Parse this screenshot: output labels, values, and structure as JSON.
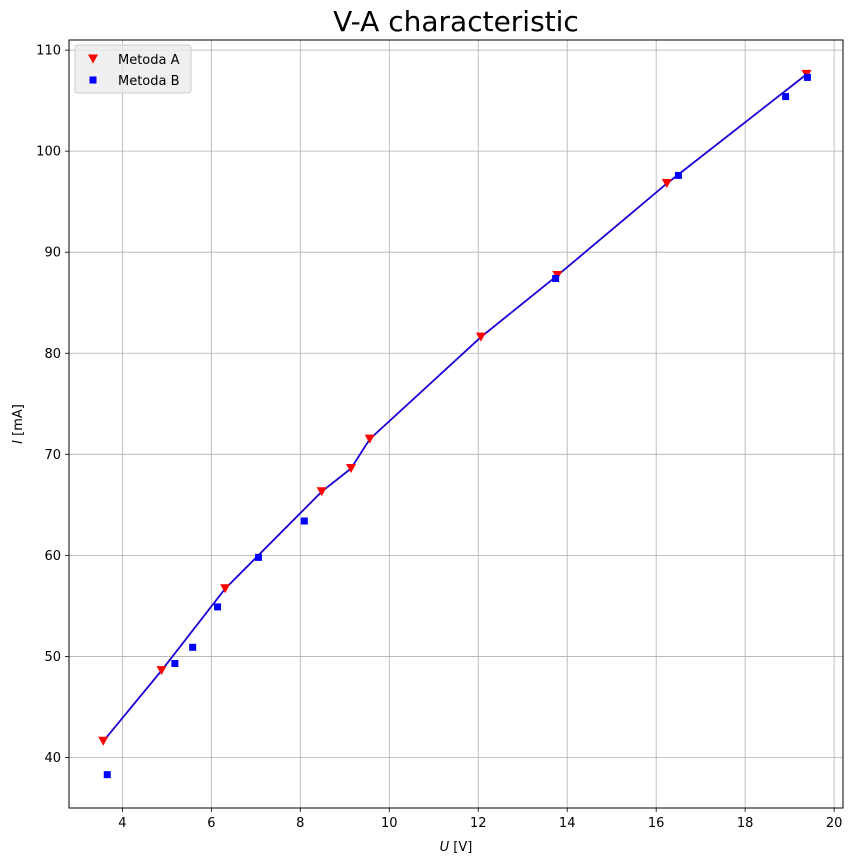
{
  "chart_data": {
    "type": "scatter",
    "title": "V-A characteristic",
    "xlabel_var": "U",
    "xlabel_unit": " [V]",
    "ylabel_var": "I",
    "ylabel_unit": " [mA]",
    "xlim": [
      2.8,
      20.2
    ],
    "ylim": [
      35,
      111
    ],
    "xticks": [
      4,
      6,
      8,
      10,
      12,
      14,
      16,
      18,
      20
    ],
    "yticks": [
      40,
      50,
      60,
      70,
      80,
      90,
      100,
      110
    ],
    "grid": true,
    "legend_position": "upper-left",
    "colors": {
      "metoda_a": "#ff0000",
      "metoda_b": "#0000ff",
      "line": "#1a00d6"
    },
    "series": [
      {
        "name": "Metoda A",
        "marker": "triangle-down",
        "x": [
          3.57,
          4.88,
          6.31,
          8.48,
          9.14,
          9.56,
          12.06,
          13.78,
          16.24,
          19.38
        ],
        "y": [
          41.6,
          48.6,
          56.7,
          66.3,
          68.6,
          71.5,
          81.6,
          87.7,
          96.8,
          107.6
        ]
      },
      {
        "name": "Metoda B",
        "marker": "square",
        "x": [
          3.66,
          5.18,
          5.58,
          6.14,
          7.06,
          8.09,
          13.74,
          16.5,
          18.91,
          19.4
        ],
        "y": [
          38.3,
          49.3,
          50.9,
          54.9,
          59.8,
          63.4,
          87.4,
          97.6,
          105.4,
          107.3
        ]
      }
    ],
    "fit_line": {
      "x": [
        3.57,
        4.88,
        6.31,
        8.48,
        9.14,
        9.56,
        12.06,
        13.78,
        16.24,
        19.38
      ],
      "y": [
        41.6,
        48.6,
        56.7,
        66.3,
        68.6,
        71.5,
        81.6,
        87.7,
        96.8,
        107.6
      ]
    }
  }
}
